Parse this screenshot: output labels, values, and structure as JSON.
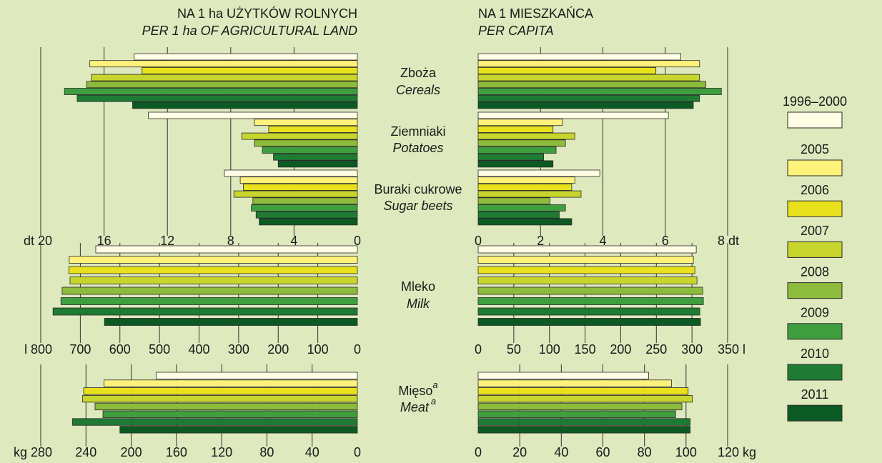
{
  "titles": {
    "left_pl": "NA 1 ha  UŻYTKÓW  ROLNYCH",
    "left_en": "PER 1 ha OF AGRICULTURAL LAND",
    "right_pl": "NA  1  MIESZKAŃCA",
    "right_en": "PER CAPITA"
  },
  "series": [
    {
      "name": "1996–2000",
      "color": "#fffde3"
    },
    {
      "name": "2005",
      "color": "#fff27a"
    },
    {
      "name": "2006",
      "color": "#e9e11c"
    },
    {
      "name": "2007",
      "color": "#c8d52c"
    },
    {
      "name": "2008",
      "color": "#8dbb3b"
    },
    {
      "name": "2009",
      "color": "#3f9f3f"
    },
    {
      "name": "2010",
      "color": "#1f7b33"
    },
    {
      "name": "2011",
      "color": "#0c5a23"
    }
  ],
  "chart_data": [
    {
      "type": "bar",
      "categories": [
        "Zboża",
        "Ziemniaki",
        "Buraki cukrowe"
      ],
      "categories_en": [
        "Cereals",
        "Potatoes",
        "Sugar beets"
      ],
      "grid": true,
      "left": {
        "xlim": [
          0,
          20
        ],
        "xticks": [
          0,
          4,
          8,
          12,
          16,
          {
            "value": 20,
            "label": "dt 20"
          }
        ],
        "values": [
          [
            14.1,
            13.2,
            8.4
          ],
          [
            16.9,
            6.5,
            7.4
          ],
          [
            13.6,
            5.6,
            7.2
          ],
          [
            16.8,
            7.3,
            7.8
          ],
          [
            17.1,
            6.5,
            6.6
          ],
          [
            18.5,
            6.0,
            6.7
          ],
          [
            17.7,
            5.3,
            6.4
          ],
          [
            14.2,
            5.0,
            6.2
          ]
        ]
      },
      "right": {
        "xlim": [
          0,
          8
        ],
        "xticks": [
          0,
          2,
          4,
          6,
          {
            "value": 8,
            "label": "8 dt"
          }
        ],
        "values": [
          [
            6.5,
            6.1,
            3.9
          ],
          [
            7.1,
            2.7,
            3.1
          ],
          [
            5.7,
            2.4,
            3.0
          ],
          [
            7.1,
            3.1,
            3.3
          ],
          [
            7.3,
            2.8,
            2.3
          ],
          [
            7.8,
            2.5,
            2.8
          ],
          [
            7.1,
            2.1,
            2.6
          ],
          [
            6.9,
            2.4,
            3.0
          ]
        ]
      }
    },
    {
      "type": "bar",
      "categories": [
        "Mleko"
      ],
      "categories_en": [
        "Milk"
      ],
      "grid": true,
      "left": {
        "xlim": [
          0,
          800
        ],
        "xticks": [
          0,
          100,
          200,
          300,
          400,
          500,
          600,
          700,
          {
            "value": 800,
            "label": "l 800"
          }
        ],
        "values": [
          [
            661
          ],
          [
            728
          ],
          [
            729
          ],
          [
            726
          ],
          [
            746
          ],
          [
            749
          ],
          [
            769
          ],
          [
            639
          ]
        ]
      },
      "right": {
        "xlim": [
          0,
          350
        ],
        "xticks": [
          0,
          50,
          100,
          150,
          200,
          250,
          300,
          {
            "value": 350,
            "label": "350 l"
          }
        ],
        "values": [
          [
            306
          ],
          [
            302
          ],
          [
            304
          ],
          [
            307
          ],
          [
            315
          ],
          [
            316
          ],
          [
            311
          ],
          [
            312
          ]
        ]
      }
    },
    {
      "type": "bar",
      "categories": [
        "Mięso"
      ],
      "categories_en": [
        "Meat"
      ],
      "category_note": "a",
      "grid": true,
      "left": {
        "xlim": [
          0,
          280
        ],
        "xticks": [
          0,
          40,
          80,
          120,
          160,
          200,
          240,
          {
            "value": 280,
            "label": "kg 280"
          }
        ],
        "values": [
          [
            178
          ],
          [
            224
          ],
          [
            242
          ],
          [
            243
          ],
          [
            232
          ],
          [
            225
          ],
          [
            252
          ],
          [
            210
          ]
        ]
      },
      "right": {
        "xlim": [
          0,
          120
        ],
        "xticks": [
          0,
          20,
          40,
          60,
          80,
          100,
          {
            "value": 120,
            "label": "120 kg"
          }
        ],
        "values": [
          [
            82
          ],
          [
            93
          ],
          [
            101
          ],
          [
            103
          ],
          [
            98
          ],
          [
            95
          ],
          [
            102
          ],
          [
            102
          ]
        ]
      }
    }
  ]
}
